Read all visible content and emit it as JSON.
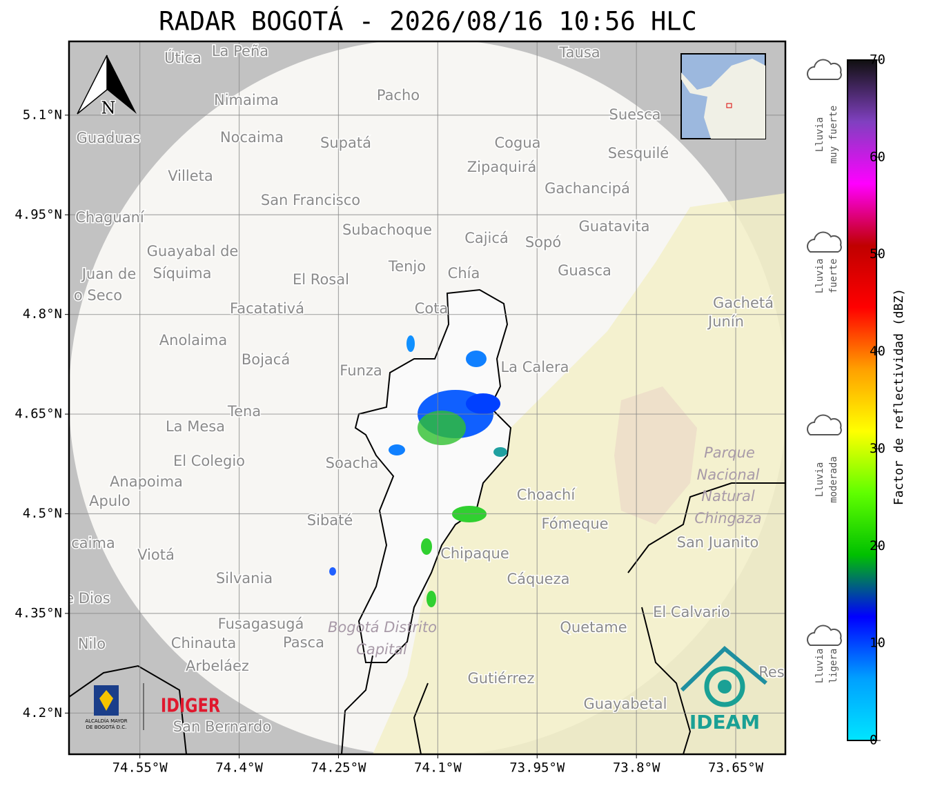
{
  "header": {
    "title": "RADAR BOGOTÁ - 2026/08/16 10:56 HLC"
  },
  "map": {
    "north": "N",
    "lonlim": [
      -74.657,
      -73.575
    ],
    "latlim": [
      4.138,
      5.211
    ],
    "lon_ticks": [
      {
        "value": -74.55,
        "label": "74.55°W"
      },
      {
        "value": -74.4,
        "label": "74.4°W"
      },
      {
        "value": -74.25,
        "label": "74.25°W"
      },
      {
        "value": -74.1,
        "label": "74.1°W"
      },
      {
        "value": -73.95,
        "label": "73.95°W"
      },
      {
        "value": -73.8,
        "label": "73.8°W"
      },
      {
        "value": -73.65,
        "label": "73.65°W"
      }
    ],
    "lat_ticks": [
      {
        "value": 5.1,
        "label": "5.1°N"
      },
      {
        "value": 4.95,
        "label": "4.95°N"
      },
      {
        "value": 4.8,
        "label": "4.8°N"
      },
      {
        "value": 4.65,
        "label": "4.65°N"
      },
      {
        "value": 4.5,
        "label": "4.5°N"
      },
      {
        "value": 4.35,
        "label": "4.35°N"
      },
      {
        "value": 4.2,
        "label": "4.2°N"
      }
    ],
    "places": [
      "La Peña",
      "Útica",
      "Tausa",
      "Pacho",
      "Nimaima",
      "Suesca",
      "Guaduas",
      "Nocaima",
      "Supatá",
      "Cogua",
      "Sesquilé",
      "Zipaquirá",
      "Villeta",
      "Gachancipá",
      "San Francisco",
      "Chaguaní",
      "Guatavita",
      "Subachoque",
      "Cajicá",
      "Sopó",
      "Guayabal de",
      "Síquima",
      "Tenjo",
      "Chía",
      "Guasca",
      "Juan de",
      "El Rosal",
      "o Seco",
      "Facatativá",
      "Cota",
      "Gachetá",
      "Junín",
      "Anolaima",
      "Bojacá",
      "Funza",
      "La Calera",
      "Tena",
      "La Mesa",
      "El Colegio",
      "Soacha",
      "Anapoima",
      "Choachí",
      "Apulo",
      "Sibaté",
      "Fómeque",
      "San Juanito",
      "caima",
      "Viotá",
      "Chipaque",
      "Silvania",
      "Cáqueza",
      "e Dios",
      "El Calvario",
      "Fusagasugá",
      "Quetame",
      "Nilo",
      "Chinauta",
      "Pasca",
      "Arbeláez",
      "Gutiérrez",
      "Guayabetal",
      "San Bernardo",
      "Res"
    ],
    "areas": [
      "Parque",
      "Nacional",
      "Natural",
      "Chingaza",
      "Bogotá Distrito",
      "Capital"
    ]
  },
  "logos": {
    "alcaldia": [
      "ALCALDÍA MAYOR",
      "DE BOGOTÁ D.C."
    ],
    "idiger": "IDIGER",
    "ideam": "IDEAM"
  },
  "colorbar": {
    "label": "Factor de reflectividad (dBZ)",
    "lim": [
      0,
      70
    ],
    "ticks": [
      0,
      10,
      20,
      30,
      40,
      50,
      60,
      70
    ],
    "colors": [
      "#00e5ff",
      "#00a0ff",
      "#0000ff",
      "#00c000",
      "#60ff00",
      "#ffff00",
      "#ffa000",
      "#ff0000",
      "#c00000",
      "#ff00ff",
      "#8040c0",
      "#101010"
    ],
    "categories": [
      [
        "Lluvia",
        "muy fuerte"
      ],
      [
        "Lluvia",
        "fuerte"
      ],
      [
        "Lluvia",
        "moderada"
      ],
      [
        "Lluvia",
        "ligera"
      ]
    ]
  }
}
